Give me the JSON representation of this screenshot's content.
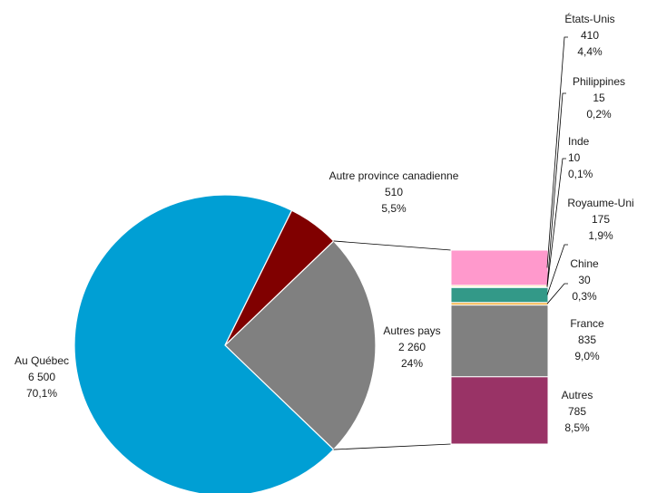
{
  "chart_data": {
    "type": "pie",
    "title": "",
    "pie": {
      "slices": [
        {
          "label": "Au Québec",
          "value": 6500,
          "value_label": "6 500",
          "percent_label": "70,1%",
          "color": "#009fd4"
        },
        {
          "label": "Autres pays",
          "value": 2260,
          "value_label": "2 260",
          "percent_label": "24%",
          "color": "#808080"
        },
        {
          "label": "Autre province canadienne",
          "value": 510,
          "value_label": "510",
          "percent_label": "5,5%",
          "color": "#800000"
        }
      ]
    },
    "breakdown": {
      "of": "Autres pays",
      "segments": [
        {
          "label": "Autres",
          "value": 785,
          "value_label": "785",
          "percent_label": "8,5%",
          "color": "#993366"
        },
        {
          "label": "France",
          "value": 835,
          "value_label": "835",
          "percent_label": "9,0%",
          "color": "#808080"
        },
        {
          "label": "Chine",
          "value": 30,
          "value_label": "30",
          "percent_label": "0,3%",
          "color": "#f5b041"
        },
        {
          "label": "Royaume-Uni",
          "value": 175,
          "value_label": "175",
          "percent_label": "1,9%",
          "color": "#339988"
        },
        {
          "label": "Inde",
          "value": 10,
          "value_label": "10",
          "percent_label": "0,1%",
          "color": "#cccccc"
        },
        {
          "label": "Philippines",
          "value": 15,
          "value_label": "15",
          "percent_label": "0,2%",
          "color": "#f4d03f"
        },
        {
          "label": "États-Unis",
          "value": 410,
          "value_label": "410",
          "percent_label": "4,4%",
          "color": "#ff99cc"
        }
      ]
    }
  }
}
